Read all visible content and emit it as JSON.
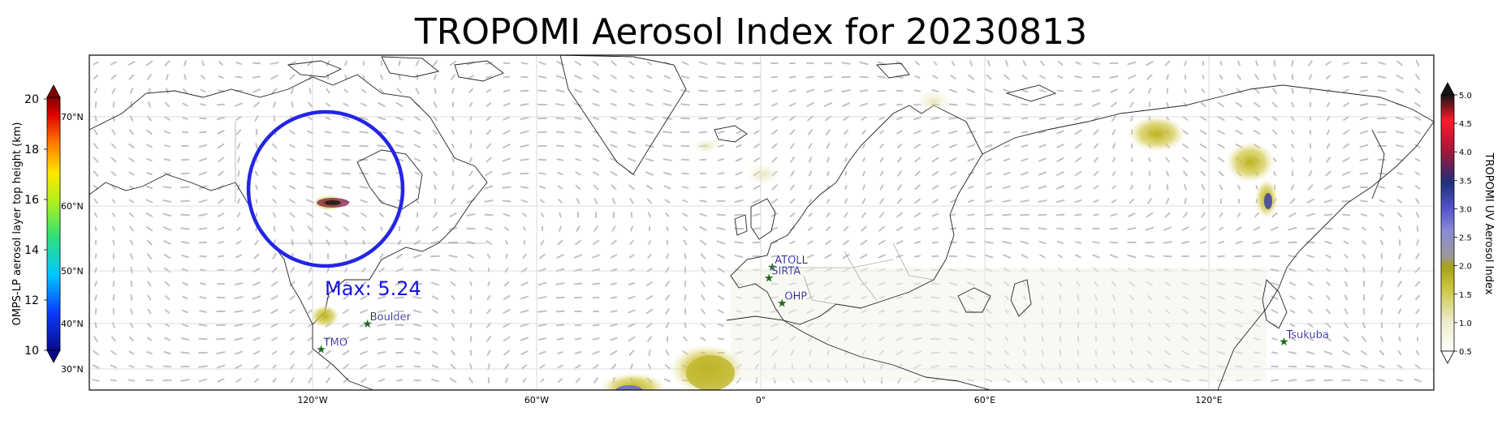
{
  "title": "TROPOMI Aerosol Index for 20230813",
  "left_colorbar": {
    "label": "OMPS-LP aerosol layer top height (km)",
    "ticks": [
      "10",
      "12",
      "14",
      "16",
      "18",
      "20"
    ],
    "min": 10,
    "max": 20
  },
  "right_colorbar": {
    "label": "TROPOMI UV Aerosol Index",
    "ticks": [
      "0.5",
      "1.0",
      "1.5",
      "2.0",
      "2.5",
      "3.0",
      "3.5",
      "4.0",
      "4.5",
      "5.0"
    ],
    "min": 0.5,
    "max": 5.0
  },
  "latitude_labels": [
    "30°N",
    "40°N",
    "50°N",
    "60°N",
    "70°N"
  ],
  "longitude_labels": [
    "120°W",
    "60°W",
    "0°",
    "60°E",
    "120°E"
  ],
  "max_annotation": "Max: 5.24",
  "stations": [
    {
      "name": "ATOLL",
      "lon": 3.1,
      "lat": 50.6
    },
    {
      "name": "SIRTA",
      "lon": 2.2,
      "lat": 48.7
    },
    {
      "name": "OHP",
      "lon": 5.7,
      "lat": 43.9
    },
    {
      "name": "Boulder",
      "lon": -105.3,
      "lat": 40.0
    },
    {
      "name": "TMO",
      "lon": -117.7,
      "lat": 34.4
    },
    {
      "name": "Tsukuba",
      "lon": 140.1,
      "lat": 36.1
    }
  ],
  "colors": {
    "station_marker": "#1a6b1a",
    "station_label": "#00008b",
    "circle": "#2424e6",
    "max_text": "#1515e0"
  }
}
